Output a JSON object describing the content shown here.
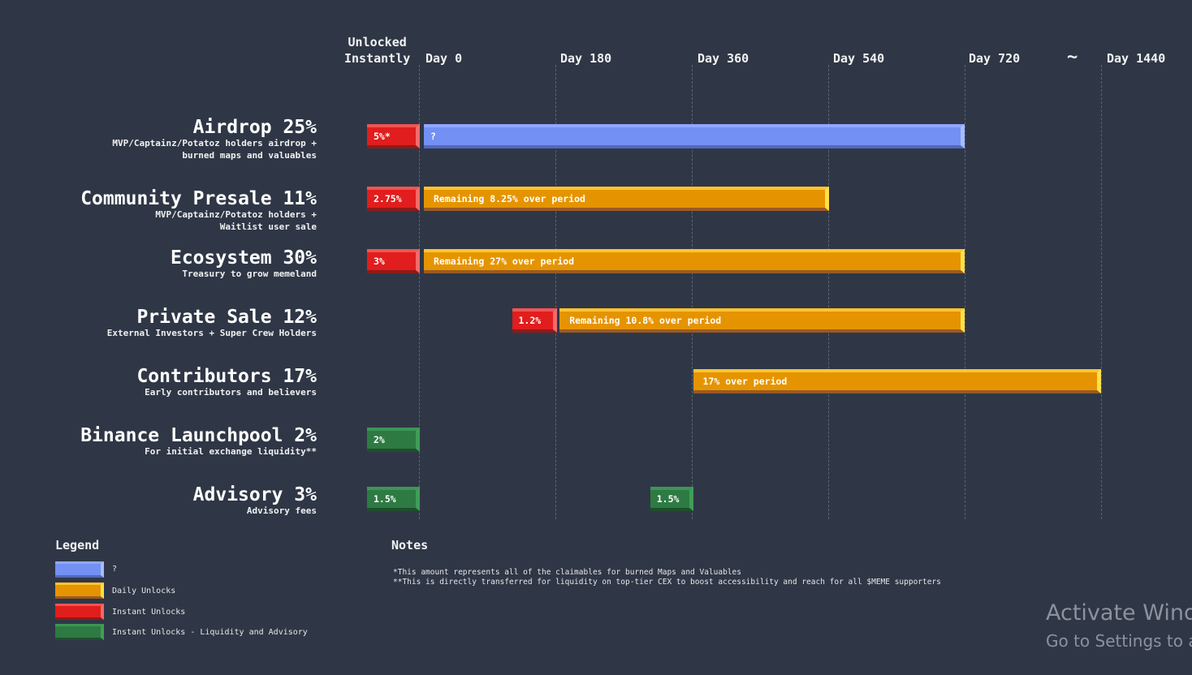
{
  "chart_data": {
    "type": "bar",
    "subtype": "gantt",
    "title": "",
    "columns": [
      {
        "label": "Unlocked\nInstantly",
        "line1": "Unlocked",
        "line2": "Instantly"
      },
      {
        "label": "Day 0",
        "day": 0
      },
      {
        "label": "Day 180",
        "day": 180
      },
      {
        "label": "Day 360",
        "day": 360
      },
      {
        "label": "Day 540",
        "day": 540
      },
      {
        "label": "Day 720",
        "day": 720
      },
      {
        "label": "~"
      },
      {
        "label": "Day 1440",
        "day": 1440
      }
    ],
    "rows": [
      {
        "title": "Airdrop 25%",
        "sub": [
          "MVP/Captainz/Potatoz holders airdrop +",
          "burned maps and valuables"
        ],
        "segments": [
          {
            "kind": "instant",
            "label": "5%*",
            "start": "instant",
            "end": 0
          },
          {
            "kind": "unknown",
            "label": "?",
            "start": 0,
            "end": 720
          }
        ]
      },
      {
        "title": "Community Presale 11%",
        "sub": [
          "MVP/Captainz/Potatoz holders +",
          "Waitlist user sale"
        ],
        "segments": [
          {
            "kind": "instant",
            "label": "2.75%",
            "start": "instant",
            "end": 0
          },
          {
            "kind": "daily",
            "label": "Remaining 8.25% over period",
            "start": 0,
            "end": 540
          }
        ]
      },
      {
        "title": "Ecosystem 30%",
        "sub": [
          "Treasury to grow memeland"
        ],
        "segments": [
          {
            "kind": "instant",
            "label": "3%",
            "start": "instant",
            "end": 0
          },
          {
            "kind": "daily",
            "label": "Remaining 27% over period",
            "start": 0,
            "end": 720
          }
        ]
      },
      {
        "title": "Private Sale 12%",
        "sub": [
          "External Investors + Super Crew Holders"
        ],
        "segments": [
          {
            "kind": "instant",
            "label": "1.2%",
            "start": 120,
            "end": 180
          },
          {
            "kind": "daily",
            "label": "Remaining 10.8% over period",
            "start": 180,
            "end": 720
          }
        ]
      },
      {
        "title": "Contributors 17%",
        "sub": [
          "Early contributors and believers"
        ],
        "segments": [
          {
            "kind": "daily",
            "label": "17% over period",
            "start": 360,
            "end": 1440
          }
        ]
      },
      {
        "title": "Binance Launchpool 2%",
        "sub": [
          "For initial exchange liquidity**"
        ],
        "segments": [
          {
            "kind": "liquidity",
            "label": "2%",
            "start": "instant",
            "end": 0
          }
        ]
      },
      {
        "title": "Advisory 3%",
        "sub": [
          "Advisory fees"
        ],
        "segments": [
          {
            "kind": "liquidity",
            "label": "1.5%",
            "start": "instant",
            "end": 0
          },
          {
            "kind": "liquidity",
            "label": "1.5%",
            "start": 300,
            "end": 360
          }
        ]
      }
    ],
    "legend": {
      "title": "Legend",
      "placement": "bottom-left",
      "entries": [
        {
          "kind": "unknown",
          "label": "?",
          "color": "#7390f4"
        },
        {
          "kind": "daily",
          "label": "Daily Unlocks",
          "color": "#e59400"
        },
        {
          "kind": "instant",
          "label": "Instant Unlocks",
          "color": "#e11d1d"
        },
        {
          "kind": "liquidity",
          "label": "Instant Unlocks - Liquidity and Advisory",
          "color": "#2e7a43"
        }
      ]
    },
    "notes": {
      "title": "Notes",
      "lines": [
        "*This amount represents all of the claimables for burned Maps and Valuables",
        "**This is directly transferred for liquidity on top-tier CEX to boost accessibility and reach for all $MEME supporters"
      ]
    },
    "grid": true
  },
  "watermark": {
    "line1": "Activate Wind",
    "line2": "Go to Settings to a"
  }
}
